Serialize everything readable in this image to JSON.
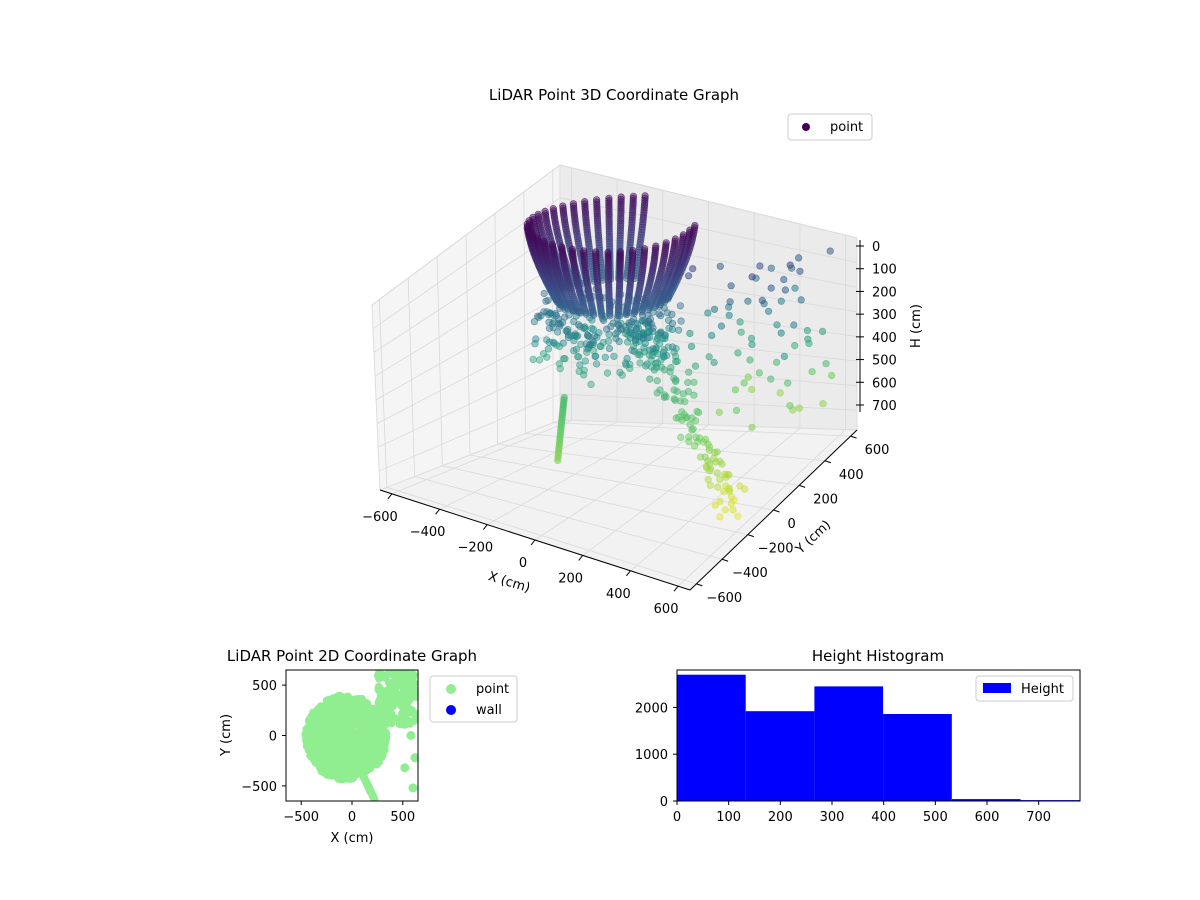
{
  "chart_data": [
    {
      "type": "scatter3d",
      "title": "LiDAR Point 3D Coordinate Graph",
      "xlabel": "X (cm)",
      "ylabel": "Y (cm)",
      "zlabel": "H (cm)",
      "xlim": [
        -650,
        650
      ],
      "ylim": [
        -650,
        650
      ],
      "zlim": [
        0,
        780
      ],
      "z_inverted": true,
      "xticks": [
        -600,
        -400,
        -200,
        0,
        200,
        400,
        600
      ],
      "yticks": [
        -600,
        -400,
        -200,
        0,
        200,
        400,
        600
      ],
      "zticks": [
        0,
        100,
        200,
        300,
        400,
        500,
        600,
        700
      ],
      "grid": true,
      "legend": {
        "position": "top-right",
        "entries": [
          "point"
        ]
      },
      "colormap": "viridis",
      "series": [
        {
          "name": "point",
          "color": "#440154",
          "cloud": {
            "radius_max": 520,
            "height_max": 760
          }
        }
      ]
    },
    {
      "type": "scatter",
      "title": "LiDAR Point 2D Coordinate Graph",
      "xlabel": "X (cm)",
      "ylabel": "Y (cm)",
      "xlim": [
        -650,
        650
      ],
      "ylim": [
        -650,
        650
      ],
      "xticks": [
        -500,
        0,
        500
      ],
      "yticks": [
        -500,
        0,
        500
      ],
      "legend": {
        "position": "outside-right",
        "entries": [
          "point",
          "wall"
        ]
      },
      "series": [
        {
          "name": "point",
          "color": "#90ee90"
        },
        {
          "name": "wall",
          "color": "#0000ff"
        }
      ]
    },
    {
      "type": "bar",
      "title": "Height Histogram",
      "xlim": [
        0,
        780
      ],
      "ylim": [
        0,
        2800
      ],
      "xticks": [
        0,
        100,
        200,
        300,
        400,
        500,
        600,
        700
      ],
      "yticks": [
        0,
        1000,
        2000
      ],
      "bin_edges": [
        0,
        133,
        266,
        399,
        532,
        665,
        780
      ],
      "values": [
        2700,
        1920,
        2450,
        1860,
        40,
        20
      ],
      "legend": {
        "position": "top-right",
        "entries": [
          "Height"
        ]
      },
      "series": [
        {
          "name": "Height",
          "color": "#0000ff"
        }
      ]
    }
  ]
}
